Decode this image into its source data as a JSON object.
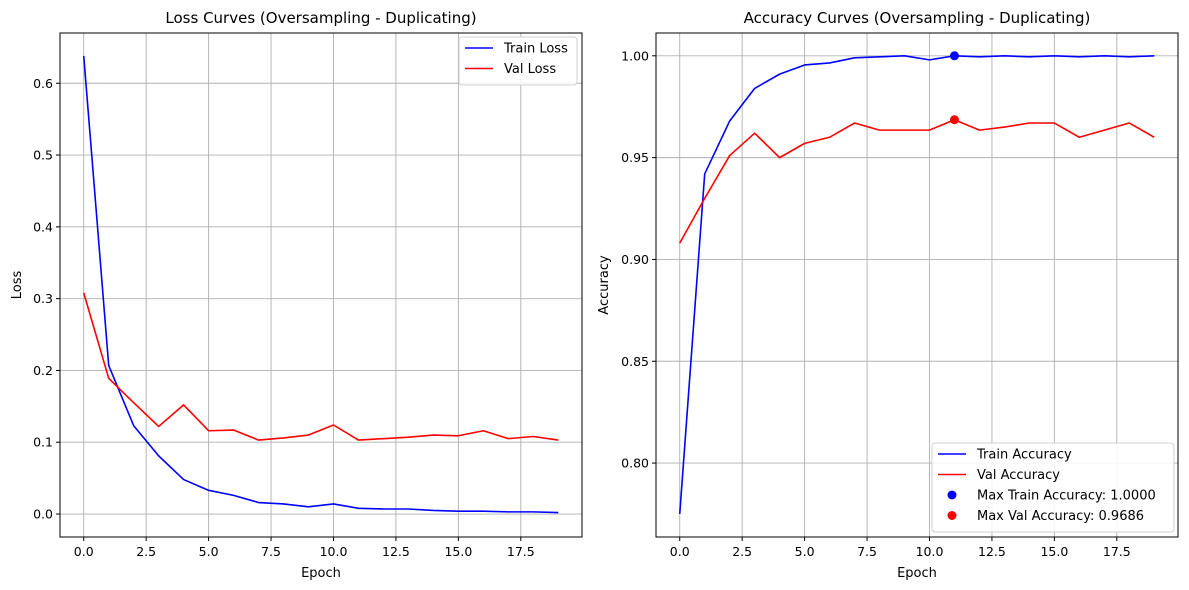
{
  "chart_data": [
    {
      "type": "line",
      "title": "Loss Curves (Oversampling - Duplicating)",
      "xlabel": "Epoch",
      "ylabel": "Loss",
      "xlim": [
        -0.95,
        19.95
      ],
      "ylim": [
        -0.032,
        0.67
      ],
      "xticks": [
        0.0,
        2.5,
        5.0,
        7.5,
        10.0,
        12.5,
        15.0,
        17.5
      ],
      "xtick_labels": [
        "0.0",
        "2.5",
        "5.0",
        "7.5",
        "10.0",
        "12.5",
        "15.0",
        "17.5"
      ],
      "yticks": [
        0.0,
        0.1,
        0.2,
        0.3,
        0.4,
        0.5,
        0.6
      ],
      "ytick_labels": [
        "0.0",
        "0.1",
        "0.2",
        "0.3",
        "0.4",
        "0.5",
        "0.6"
      ],
      "grid": true,
      "legend_position": "top-right",
      "x": [
        0,
        1,
        2,
        3,
        4,
        5,
        6,
        7,
        8,
        9,
        10,
        11,
        12,
        13,
        14,
        15,
        16,
        17,
        18,
        19
      ],
      "series": [
        {
          "name": "Train Loss",
          "color": "#0000ff",
          "values": [
            0.638,
            0.207,
            0.123,
            0.081,
            0.048,
            0.033,
            0.026,
            0.016,
            0.014,
            0.01,
            0.014,
            0.008,
            0.007,
            0.007,
            0.005,
            0.004,
            0.004,
            0.003,
            0.003,
            0.002
          ]
        },
        {
          "name": "Val Loss",
          "color": "#ff0000",
          "values": [
            0.308,
            0.189,
            0.155,
            0.122,
            0.152,
            0.116,
            0.117,
            0.103,
            0.106,
            0.11,
            0.124,
            0.103,
            0.105,
            0.107,
            0.11,
            0.109,
            0.116,
            0.105,
            0.108,
            0.103
          ]
        }
      ],
      "markers": []
    },
    {
      "type": "line",
      "title": "Accuracy Curves (Oversampling - Duplicating)",
      "xlabel": "Epoch",
      "ylabel": "Accuracy",
      "xlim": [
        -0.95,
        19.95
      ],
      "ylim": [
        0.7637,
        1.0112
      ],
      "xticks": [
        0.0,
        2.5,
        5.0,
        7.5,
        10.0,
        12.5,
        15.0,
        17.5
      ],
      "xtick_labels": [
        "0.0",
        "2.5",
        "5.0",
        "7.5",
        "10.0",
        "12.5",
        "15.0",
        "17.5"
      ],
      "yticks": [
        0.8,
        0.85,
        0.9,
        0.95,
        1.0
      ],
      "ytick_labels": [
        "0.80",
        "0.85",
        "0.90",
        "0.95",
        "1.00"
      ],
      "grid": true,
      "legend_position": "bottom-right",
      "x": [
        0,
        1,
        2,
        3,
        4,
        5,
        6,
        7,
        8,
        9,
        10,
        11,
        12,
        13,
        14,
        15,
        16,
        17,
        18,
        19
      ],
      "series": [
        {
          "name": "Train Accuracy",
          "color": "#0000ff",
          "values": [
            0.775,
            0.942,
            0.968,
            0.984,
            0.991,
            0.9955,
            0.9965,
            0.999,
            0.9995,
            1.0,
            0.998,
            1.0,
            0.9995,
            1.0,
            0.9995,
            1.0,
            0.9995,
            1.0,
            0.9995,
            1.0
          ]
        },
        {
          "name": "Val Accuracy",
          "color": "#ff0000",
          "values": [
            0.908,
            0.93,
            0.951,
            0.962,
            0.95,
            0.957,
            0.96,
            0.967,
            0.9635,
            0.9635,
            0.9635,
            0.9686,
            0.9635,
            0.965,
            0.967,
            0.967,
            0.96,
            0.9635,
            0.967,
            0.96
          ]
        }
      ],
      "markers": [
        {
          "name": "Max Train Accuracy: 1.0000",
          "x": 11,
          "y": 1.0,
          "color": "#0000ff"
        },
        {
          "name": "Max Val Accuracy: 0.9686",
          "x": 11,
          "y": 0.9686,
          "color": "#ff0000"
        }
      ]
    }
  ]
}
